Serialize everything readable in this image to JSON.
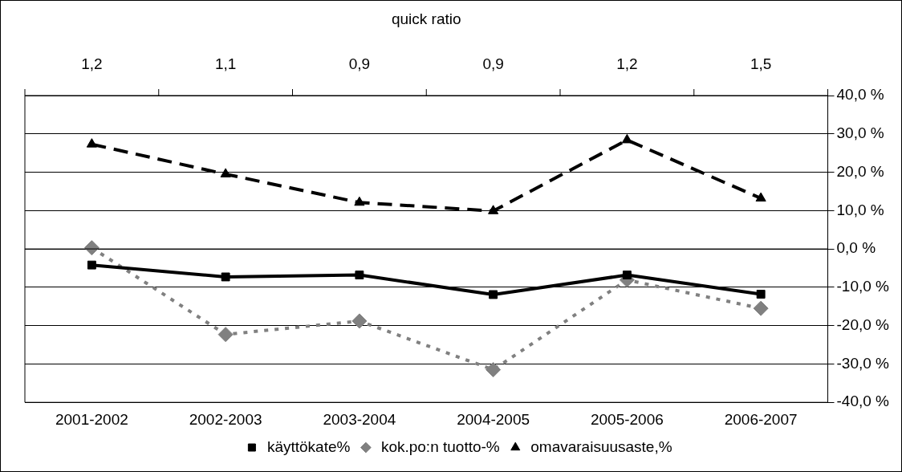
{
  "chart_data": {
    "type": "line",
    "categories": [
      "2001-2002",
      "2002-2003",
      "2003-2004",
      "2004-2005",
      "2005-2006",
      "2006-2007"
    ],
    "series": [
      {
        "name": "käyttökate%",
        "color": "#000000",
        "marker": "square",
        "line_style": "solid",
        "values": [
          -4.2,
          -7.3,
          -6.8,
          -11.9,
          -6.8,
          -11.8
        ]
      },
      {
        "name": "kok.po:n tuotto-%",
        "color": "#808080",
        "marker": "diamond",
        "line_style": "dotted",
        "values": [
          0.3,
          -22.3,
          -18.8,
          -31.5,
          -8.1,
          -15.5
        ]
      },
      {
        "name": "omavaraisuusaste,%",
        "color": "#000000",
        "marker": "triangle",
        "line_style": "dashed",
        "values": [
          27.3,
          19.5,
          12.1,
          9.9,
          28.4,
          13.2
        ]
      }
    ],
    "ylim": [
      -40,
      40
    ],
    "yticks": [
      {
        "value": -40,
        "label": "-40,0 %"
      },
      {
        "value": -30,
        "label": "-30,0 %"
      },
      {
        "value": -20,
        "label": "-20,0 %"
      },
      {
        "value": -10,
        "label": "-10,0 %"
      },
      {
        "value": 0,
        "label": "0,0 %"
      },
      {
        "value": 10,
        "label": "10,0 %"
      },
      {
        "value": 20,
        "label": "20,0 %"
      },
      {
        "value": 30,
        "label": "30,0 %"
      },
      {
        "value": 40,
        "label": "40,0 %"
      }
    ],
    "annotations": [
      "quick ratio",
      "1,2",
      "1,1",
      "0,9",
      "0,9",
      "1,2",
      "1,5"
    ],
    "grid": "y",
    "legend": "bottom"
  }
}
